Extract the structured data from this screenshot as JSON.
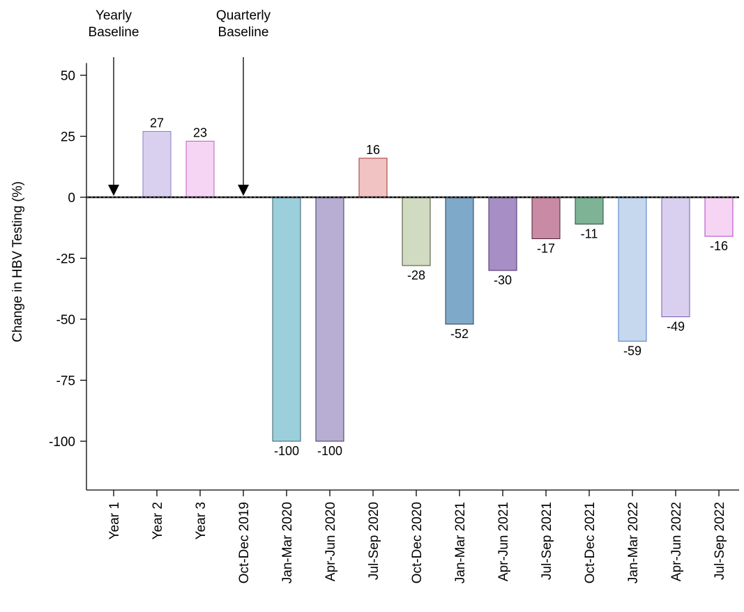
{
  "chart_data": {
    "type": "bar",
    "ylabel": "Change in HBV Testing (%)",
    "ylim": [
      -120,
      55
    ],
    "yticks": [
      50,
      25,
      0,
      -25,
      -50,
      -75,
      -100
    ],
    "categories": [
      "Year 1",
      "Year 2",
      "Year 3",
      "Oct-Dec 2019",
      "Jan-Mar 2020",
      "Apr-Jun 2020",
      "Jul-Sep 2020",
      "Oct-Dec 2020",
      "Jan-Mar 2021",
      "Apr-Jun 2021",
      "Jul-Sep 2021",
      "Oct-Dec 2021",
      "Jan-Mar 2022",
      "Apr-Jun 2022",
      "Jul-Sep 2022"
    ],
    "values": [
      null,
      27,
      23,
      null,
      -100,
      -100,
      16,
      -28,
      -52,
      -30,
      -17,
      -11,
      -59,
      -49,
      -16
    ],
    "value_labels": [
      "",
      "27",
      "23",
      "",
      "-100",
      "-100",
      "16",
      "-28",
      "-52",
      "-30",
      "-17",
      "-11",
      "-59",
      "-49",
      "-16"
    ],
    "bar_fills": [
      "",
      "#d9d0ef",
      "#f5d4f4",
      "",
      "#9ccfdc",
      "#b8aed4",
      "#f2c3c3",
      "#d0dbc1",
      "#7fa9c8",
      "#a78fc6",
      "#c98aa6",
      "#7fb396",
      "#c5d8ee",
      "#d9d0ef",
      "#f5d4f4"
    ],
    "bar_strokes": [
      "",
      "#8a7fc0",
      "#c060c0",
      "",
      "#3a5f6a",
      "#3a3a5a",
      "#a03030",
      "#4a4a30",
      "#2a3a5a",
      "#4a2a6a",
      "#4a2030",
      "#2a4a30",
      "#4a7ac8",
      "#7a5ab0",
      "#b040c0"
    ],
    "annotations": [
      {
        "category_index": 0,
        "lines": [
          "Yearly",
          "Baseline"
        ]
      },
      {
        "category_index": 3,
        "lines": [
          "Quarterly",
          "Baseline"
        ]
      }
    ]
  }
}
